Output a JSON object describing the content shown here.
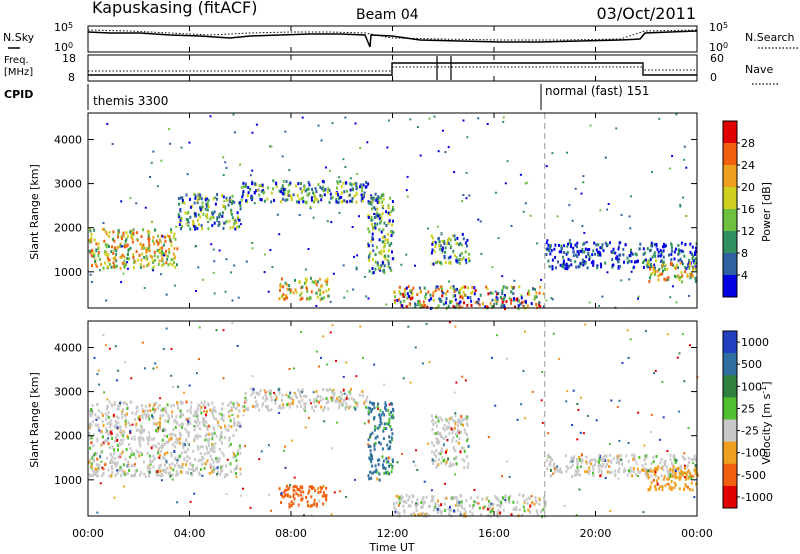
{
  "header": {
    "station": "Kapuskasing (fitACF)",
    "beam": "Beam 04",
    "date": "03/Oct/2011"
  },
  "noise_panel": {
    "left_label": "N.Sky",
    "right_label": "N.Search",
    "ticks": [
      {
        "base": "10",
        "exp": "5"
      },
      {
        "base": "10",
        "exp": "0"
      }
    ]
  },
  "freq_panel": {
    "left_label_line1": "Freq.",
    "left_label_line2": "[MHz]",
    "right_label": "Nave",
    "left_ticks": [
      "18",
      "8"
    ],
    "right_ticks": [
      "60",
      "0"
    ]
  },
  "cpid": {
    "label": "CPID",
    "modes": [
      {
        "name": "themis 3300",
        "start_hour": 0,
        "end_hour": 18
      },
      {
        "name": "normal (fast) 151",
        "start_hour": 18,
        "end_hour": 24
      }
    ]
  },
  "x_axis": {
    "label": "Time UT",
    "ticks": [
      "00:00",
      "04:00",
      "08:00",
      "12:00",
      "16:00",
      "20:00",
      "00:00"
    ],
    "start_hour": 0,
    "end_hour": 24
  },
  "power_colorbar": {
    "label": "Power [dB]",
    "ticks": [
      "28",
      "24",
      "20",
      "16",
      "12",
      "8",
      "4"
    ],
    "colors": [
      "#e00000",
      "#f06010",
      "#f0a020",
      "#d0d020",
      "#70c040",
      "#309060",
      "#3060a0",
      "#0000e0"
    ]
  },
  "velocity_colorbar": {
    "label_main": "Velocity [m s",
    "label_sup": "-1",
    "label_end": "]",
    "ticks": [
      "1000",
      "500",
      "100",
      "25",
      "-25",
      "-100",
      "-500",
      "-1000"
    ],
    "colors": [
      "#2040c0",
      "#3070a0",
      "#308040",
      "#50c030",
      "#c8c8c8",
      "#f0a020",
      "#f06010",
      "#e00000"
    ]
  },
  "chart_data": [
    {
      "type": "heatmap",
      "title": "Power",
      "xlabel": "Time UT",
      "ylabel": "Slant Range [km]",
      "xlim": [
        0,
        24
      ],
      "ylim": [
        180,
        4600
      ],
      "yticks": [
        1000,
        2000,
        3000,
        4000
      ],
      "colorbar_unit": "dB",
      "colorbar_range": [
        0,
        30
      ],
      "regions": [
        {
          "t0": 0.0,
          "t1": 3.5,
          "r0": 1100,
          "r1": 2000,
          "level": "high"
        },
        {
          "t0": 3.5,
          "t1": 6.0,
          "r0": 2000,
          "r1": 2800,
          "level": "medium"
        },
        {
          "t0": 6.0,
          "t1": 11.0,
          "r0": 2600,
          "r1": 3100,
          "level": "medium"
        },
        {
          "t0": 11.0,
          "t1": 12.0,
          "r0": 1000,
          "r1": 2800,
          "level": "medium"
        },
        {
          "t0": 7.5,
          "t1": 9.5,
          "r0": 400,
          "r1": 900,
          "level": "high"
        },
        {
          "t0": 12.0,
          "t1": 18.0,
          "r0": 200,
          "r1": 700,
          "level": "mixed"
        },
        {
          "t0": 13.5,
          "t1": 15.0,
          "r0": 1200,
          "r1": 1900,
          "level": "medium"
        },
        {
          "t0": 18.0,
          "t1": 24.0,
          "r0": 1100,
          "r1": 1700,
          "level": "low"
        },
        {
          "t0": 22.0,
          "t1": 24.0,
          "r0": 800,
          "r1": 1300,
          "level": "high"
        }
      ]
    },
    {
      "type": "heatmap",
      "title": "Velocity",
      "xlabel": "Time UT",
      "ylabel": "Slant Range [km]",
      "xlim": [
        0,
        24
      ],
      "ylim": [
        180,
        4600
      ],
      "yticks": [
        1000,
        2000,
        3000,
        4000
      ],
      "colorbar_unit": "m s-1",
      "colorbar_range": [
        -1000,
        1000
      ],
      "regions": [
        {
          "t0": 0.0,
          "t1": 6.0,
          "r0": 1100,
          "r1": 2800,
          "velocity": 0
        },
        {
          "t0": 6.0,
          "t1": 11.0,
          "r0": 2600,
          "r1": 3100,
          "velocity": 0
        },
        {
          "t0": 11.0,
          "t1": 12.0,
          "r0": 1000,
          "r1": 2800,
          "velocity": 120
        },
        {
          "t0": 7.5,
          "t1": 9.5,
          "r0": 400,
          "r1": 900,
          "velocity": -150
        },
        {
          "t0": 12.0,
          "t1": 18.0,
          "r0": 200,
          "r1": 700,
          "velocity": 0
        },
        {
          "t0": 13.5,
          "t1": 15.0,
          "r0": 1300,
          "r1": 2500,
          "velocity": 0
        },
        {
          "t0": 18.0,
          "t1": 24.0,
          "r0": 1100,
          "r1": 1600,
          "velocity": 0
        },
        {
          "t0": 22.0,
          "t1": 24.0,
          "r0": 800,
          "r1": 1300,
          "velocity": -60
        }
      ]
    }
  ]
}
